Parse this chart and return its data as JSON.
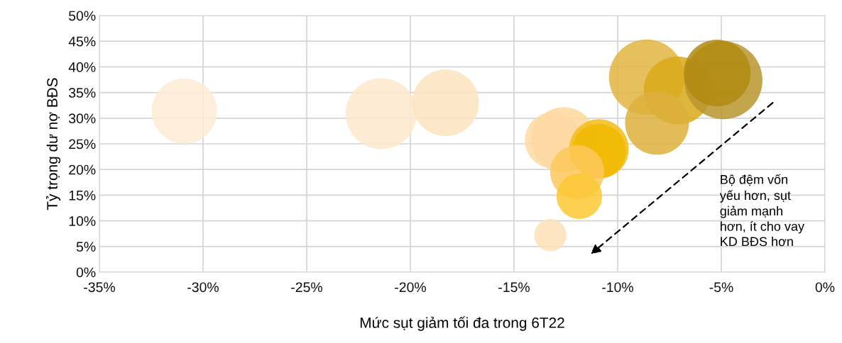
{
  "chart_data": {
    "type": "bubble",
    "xlabel": "Mức sụt giảm tối đa trong 6T22",
    "ylabel": "Tỷ trọng dư nợ BĐS",
    "x": [
      -30.9,
      -21.4,
      -18.3,
      -8.6,
      -7.1,
      -4.9,
      -5.2,
      -8.1,
      -12.6,
      -13.1,
      -10.9,
      -10.9,
      -11.95,
      -11.85,
      -13.25
    ],
    "values": [
      31.4,
      30.9,
      33.0,
      38.0,
      35.4,
      37.4,
      38.8,
      29.1,
      25.8,
      25.7,
      24.0,
      23.6,
      19.5,
      14.8,
      7.2
    ],
    "sizes": [
      0.7,
      0.83,
      0.73,
      0.93,
      0.76,
      1.0,
      0.73,
      0.67,
      0.7,
      0.53,
      0.58,
      0.48,
      0.48,
      0.34,
      0.17
    ],
    "colors": [
      "#fdebd3",
      "#fde8cd",
      "#fce3bf",
      "#e2b540",
      "#d9a818",
      "#b8952f",
      "#b08a10",
      "#dcb03c",
      "#fdd89b",
      "#fdd9a2",
      "#f2bd18",
      "#f0b800",
      "#fcc85a",
      "#fdc833",
      "#fde0b7"
    ],
    "xlim": [
      -35,
      0
    ],
    "xticks": [
      {
        "value": -35,
        "label": "-35%"
      },
      {
        "value": -30,
        "label": "-30%"
      },
      {
        "value": -25,
        "label": "-25%"
      },
      {
        "value": -20,
        "label": "-20%"
      },
      {
        "value": -15,
        "label": "-15%"
      },
      {
        "value": -10,
        "label": "-10%"
      },
      {
        "value": -5,
        "label": "-5%"
      },
      {
        "value": 0,
        "label": "0%"
      }
    ],
    "ylim": [
      0,
      50
    ],
    "yticks": [
      {
        "value": 0,
        "label": "0%"
      },
      {
        "value": 5,
        "label": "5%"
      },
      {
        "value": 10,
        "label": "10%"
      },
      {
        "value": 15,
        "label": "15%"
      },
      {
        "value": 20,
        "label": "20%"
      },
      {
        "value": 25,
        "label": "25%"
      },
      {
        "value": 30,
        "label": "30%"
      },
      {
        "value": 35,
        "label": "35%"
      },
      {
        "value": 40,
        "label": "40%"
      },
      {
        "value": 45,
        "label": "45%"
      },
      {
        "value": 50,
        "label": "50%"
      }
    ],
    "grid": true,
    "annotations": [
      "Bộ đệm vốn\nyếu hơn, sụt\ngiảm mạnh\nhơn, ít cho vay\nKD BĐS hơn"
    ]
  }
}
